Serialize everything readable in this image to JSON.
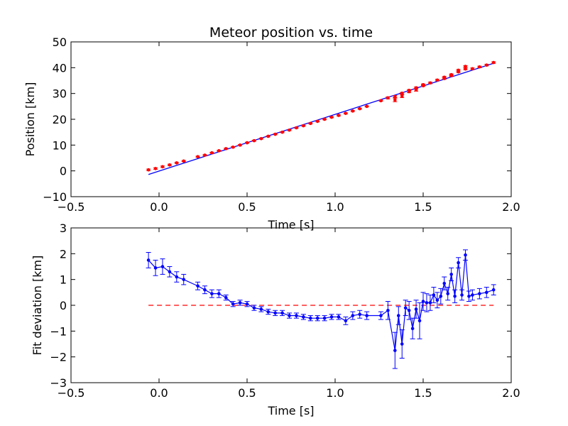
{
  "chart_data": [
    {
      "type": "scatter",
      "title": "Meteor position vs. time",
      "xlabel": "Time [s]",
      "ylabel": "Position [km]",
      "xlim": [
        -0.5,
        2.0
      ],
      "ylim": [
        -10,
        50
      ],
      "xticks": [
        "−0.5",
        "0.0",
        "0.5",
        "1.0",
        "1.5",
        "2.0"
      ],
      "yticks": [
        "−10",
        "0",
        "10",
        "20",
        "30",
        "40",
        "50"
      ],
      "grid": false,
      "colors": {
        "points": "#ff0000",
        "fit": "#0000ff"
      },
      "series": [
        {
          "kind": "fit-line",
          "x": [
            -0.06,
            1.9
          ],
          "y": [
            -1.4,
            41.7
          ]
        },
        {
          "kind": "points-with-errorbars",
          "x": [
            -0.06,
            -0.02,
            0.02,
            0.06,
            0.1,
            0.14,
            0.22,
            0.26,
            0.3,
            0.34,
            0.38,
            0.42,
            0.46,
            0.5,
            0.54,
            0.58,
            0.62,
            0.66,
            0.7,
            0.74,
            0.78,
            0.82,
            0.86,
            0.9,
            0.94,
            0.98,
            1.02,
            1.06,
            1.1,
            1.14,
            1.18,
            1.26,
            1.3,
            1.34,
            1.34,
            1.38,
            1.38,
            1.42,
            1.42,
            1.46,
            1.46,
            1.5,
            1.5,
            1.54,
            1.58,
            1.62,
            1.62,
            1.66,
            1.66,
            1.7,
            1.7,
            1.74,
            1.74,
            1.78,
            1.82,
            1.86,
            1.9
          ],
          "y": [
            0.4,
            0.9,
            1.6,
            2.3,
            3.1,
            3.8,
            5.5,
            6.1,
            7.0,
            7.8,
            8.6,
            9.2,
            10.0,
            10.9,
            11.7,
            12.5,
            13.4,
            14.2,
            15.0,
            15.8,
            16.7,
            17.5,
            18.4,
            19.2,
            20.0,
            20.8,
            21.5,
            22.3,
            23.2,
            24.1,
            25.0,
            27.2,
            28.3,
            27.5,
            28.8,
            29.0,
            30.1,
            30.7,
            31.2,
            31.4,
            32.2,
            33.0,
            33.4,
            34.1,
            35.2,
            35.8,
            36.3,
            36.9,
            37.3,
            38.4,
            39.0,
            39.5,
            40.5,
            39.6,
            40.3,
            41.0,
            42.0
          ],
          "err": [
            0.3,
            0.3,
            0.3,
            0.3,
            0.2,
            0.2,
            0.2,
            0.2,
            0.2,
            0.2,
            0.2,
            0.2,
            0.2,
            0.2,
            0.2,
            0.2,
            0.2,
            0.2,
            0.2,
            0.2,
            0.2,
            0.2,
            0.2,
            0.2,
            0.2,
            0.2,
            0.2,
            0.2,
            0.2,
            0.2,
            0.2,
            0.2,
            0.4,
            0.7,
            0.4,
            0.6,
            0.3,
            0.4,
            0.3,
            0.5,
            0.3,
            0.3,
            0.3,
            0.3,
            0.3,
            0.3,
            0.3,
            0.3,
            0.3,
            0.3,
            0.3,
            0.3,
            0.3,
            0.3,
            0.3,
            0.3,
            0.3
          ]
        }
      ]
    },
    {
      "type": "line",
      "title": "",
      "xlabel": "Time [s]",
      "ylabel": "Fit deviation [km]",
      "xlim": [
        -0.5,
        2.0
      ],
      "ylim": [
        -3,
        3
      ],
      "xticks": [
        "−0.5",
        "0.0",
        "0.5",
        "1.0",
        "1.5",
        "2.0"
      ],
      "yticks": [
        "−3",
        "−2",
        "−1",
        "0",
        "1",
        "2",
        "3"
      ],
      "grid": false,
      "colors": {
        "line": "#0000ff",
        "zero": "#ff0000"
      },
      "series": [
        {
          "kind": "zero-line",
          "x": [
            -0.06,
            1.9
          ],
          "y": [
            0,
            0
          ]
        },
        {
          "kind": "line-with-errorbars",
          "x": [
            -0.06,
            -0.02,
            0.02,
            0.06,
            0.1,
            0.14,
            0.22,
            0.26,
            0.3,
            0.34,
            0.38,
            0.42,
            0.46,
            0.5,
            0.54,
            0.58,
            0.62,
            0.66,
            0.7,
            0.74,
            0.78,
            0.82,
            0.86,
            0.9,
            0.94,
            0.98,
            1.02,
            1.06,
            1.1,
            1.14,
            1.18,
            1.26,
            1.3,
            1.34,
            1.36,
            1.38,
            1.4,
            1.42,
            1.44,
            1.46,
            1.48,
            1.5,
            1.52,
            1.54,
            1.56,
            1.58,
            1.6,
            1.62,
            1.64,
            1.66,
            1.68,
            1.7,
            1.72,
            1.74,
            1.76,
            1.78,
            1.82,
            1.86,
            1.9
          ],
          "y": [
            1.75,
            1.45,
            1.5,
            1.3,
            1.1,
            1.0,
            0.75,
            0.6,
            0.45,
            0.45,
            0.3,
            0.05,
            0.1,
            0.05,
            -0.1,
            -0.15,
            -0.25,
            -0.3,
            -0.3,
            -0.4,
            -0.4,
            -0.45,
            -0.5,
            -0.5,
            -0.5,
            -0.45,
            -0.45,
            -0.6,
            -0.4,
            -0.35,
            -0.4,
            -0.4,
            -0.2,
            -1.75,
            -0.4,
            -1.5,
            -0.1,
            -0.2,
            -0.9,
            -0.15,
            -0.6,
            0.15,
            0.1,
            0.1,
            0.4,
            0.2,
            0.35,
            0.85,
            0.45,
            1.2,
            0.35,
            1.65,
            0.4,
            1.95,
            0.35,
            0.4,
            0.45,
            0.5,
            0.6
          ],
          "err": [
            0.3,
            0.3,
            0.3,
            0.2,
            0.2,
            0.2,
            0.15,
            0.15,
            0.15,
            0.15,
            0.1,
            0.1,
            0.1,
            0.1,
            0.1,
            0.1,
            0.1,
            0.1,
            0.1,
            0.1,
            0.1,
            0.1,
            0.1,
            0.1,
            0.1,
            0.1,
            0.1,
            0.15,
            0.15,
            0.15,
            0.15,
            0.15,
            0.35,
            0.7,
            0.35,
            0.55,
            0.3,
            0.35,
            0.4,
            0.35,
            0.7,
            0.35,
            0.35,
            0.3,
            0.3,
            0.3,
            0.3,
            0.25,
            0.25,
            0.25,
            0.25,
            0.2,
            0.2,
            0.2,
            0.2,
            0.2,
            0.2,
            0.2,
            0.2
          ]
        }
      ]
    }
  ]
}
